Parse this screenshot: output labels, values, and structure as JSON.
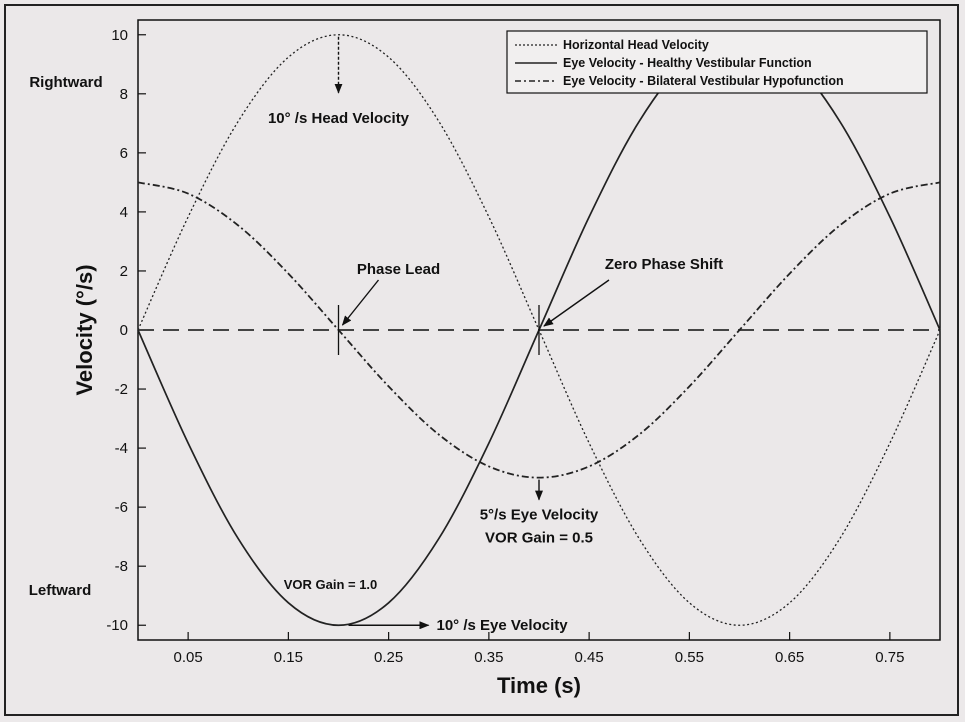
{
  "chart_data": {
    "type": "line",
    "title": "",
    "xlabel": "Time (s)",
    "ylabel": "Velocity (°/s)",
    "xlim": [
      0,
      0.8
    ],
    "ylim": [
      -10.5,
      10.5
    ],
    "x_ticks": [
      0.05,
      0.15,
      0.25,
      0.35,
      0.45,
      0.55,
      0.65,
      0.75
    ],
    "x_tick_labels": [
      "0.05",
      "0.15",
      "0.25",
      "0.35",
      "0.45",
      "0.55",
      "0.65",
      "0.75"
    ],
    "y_ticks": [
      10,
      8,
      6,
      4,
      2,
      0,
      -2,
      -4,
      -6,
      -8,
      -10
    ],
    "y_tick_labels": [
      "10",
      "8",
      "6",
      "4",
      "2",
      "0",
      "-2",
      "-4",
      "-6",
      "-8",
      "-10"
    ],
    "legend_position": "top-right",
    "series": [
      {
        "name": "Horizontal Head Velocity",
        "style": "dotted",
        "x": [
          0,
          0.05,
          0.1,
          0.15,
          0.2,
          0.25,
          0.3,
          0.35,
          0.4,
          0.45,
          0.5,
          0.55,
          0.6,
          0.65,
          0.7,
          0.75,
          0.8
        ],
        "y": [
          0,
          3.83,
          7.07,
          9.24,
          10,
          9.24,
          7.07,
          3.83,
          0,
          -3.83,
          -7.07,
          -9.24,
          -10,
          -9.24,
          -7.07,
          -3.83,
          0
        ]
      },
      {
        "name": "Eye Velocity - Healthy Vestibular Function",
        "style": "solid",
        "x": [
          0,
          0.05,
          0.1,
          0.15,
          0.2,
          0.25,
          0.3,
          0.35,
          0.4,
          0.45,
          0.5,
          0.55,
          0.6,
          0.65,
          0.7,
          0.75,
          0.8
        ],
        "y": [
          0,
          -3.83,
          -7.07,
          -9.24,
          -10,
          -9.24,
          -7.07,
          -3.83,
          0,
          3.83,
          7.07,
          9.24,
          10,
          9.24,
          7.07,
          3.83,
          0
        ]
      },
      {
        "name": "Eye Velocity - Bilateral Vestibular Hypofunction",
        "style": "dash-dot",
        "x": [
          0,
          0.05,
          0.1,
          0.15,
          0.2,
          0.25,
          0.3,
          0.35,
          0.4,
          0.45,
          0.5,
          0.55,
          0.6,
          0.65,
          0.7,
          0.75,
          0.8
        ],
        "y": [
          5,
          4.62,
          3.54,
          1.91,
          0,
          -1.91,
          -3.54,
          -4.62,
          -5,
          -4.62,
          -3.54,
          -1.91,
          0,
          1.91,
          3.54,
          4.62,
          5
        ]
      }
    ],
    "zero_line": {
      "y": 0,
      "style": "dashed"
    },
    "annotations": {
      "head_velocity": {
        "text": "10° /s Head Velocity",
        "x": 0.2,
        "y": 10
      },
      "phase_lead": {
        "text": "Phase Lead",
        "x": 0.2,
        "y": 0
      },
      "zero_phase_shift": {
        "text": "Zero Phase Shift",
        "x": 0.4,
        "y": 0
      },
      "eye_velocity_5": {
        "text": "5°/s Eye Velocity",
        "x": 0.4,
        "y": -5
      },
      "vor_gain_05": {
        "text": "VOR Gain = 0.5"
      },
      "vor_gain_10": {
        "text": "VOR Gain = 1.0"
      },
      "eye_velocity_10": {
        "text": "10° /s Eye Velocity",
        "x": 0.2,
        "y": -10
      }
    },
    "side_labels": {
      "top": "Rightward",
      "bottom": "Leftward"
    }
  }
}
